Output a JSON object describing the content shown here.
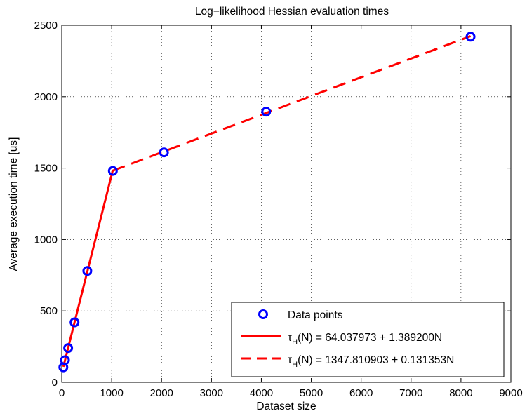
{
  "chart_data": {
    "type": "line",
    "title": "Log−likelihood Hessian evaluation times",
    "xlabel": "Dataset size",
    "ylabel": "Average execution time [us]",
    "xlim": [
      0,
      9000
    ],
    "ylim": [
      0,
      2500
    ],
    "xticks": [
      "0",
      "1000",
      "2000",
      "3000",
      "4000",
      "5000",
      "6000",
      "7000",
      "8000",
      "9000"
    ],
    "yticks": [
      "0",
      "500",
      "1000",
      "1500",
      "2000",
      "2500"
    ],
    "grid": true,
    "legend_position": "bottom-right",
    "series": [
      {
        "name": "Data points",
        "kind": "markers",
        "marker": "circle",
        "color": "#0000ff",
        "x": [
          32,
          64,
          128,
          256,
          512,
          1024,
          2048,
          4096,
          8192
        ],
        "y": [
          105,
          155,
          240,
          420,
          780,
          1480,
          1610,
          1895,
          2420
        ]
      },
      {
        "name": "τH(N) = 64.037973 + 1.389200N",
        "legend_main": "τ",
        "legend_sub": "H",
        "legend_rest": "(N) = 64.037973 + 1.389200N",
        "kind": "solid-line",
        "color": "#ff0000",
        "intercept": 64.037973,
        "slope": 1.3892,
        "x": [
          32,
          1024
        ]
      },
      {
        "name": "τH(N) = 1347.810903 + 0.131353N",
        "legend_main": "τ",
        "legend_sub": "H",
        "legend_rest": "(N) = 1347.810903 + 0.131353N",
        "kind": "dashed-line",
        "color": "#ff0000",
        "intercept": 1347.810903,
        "slope": 0.131353,
        "x": [
          1024,
          8192
        ]
      }
    ]
  }
}
